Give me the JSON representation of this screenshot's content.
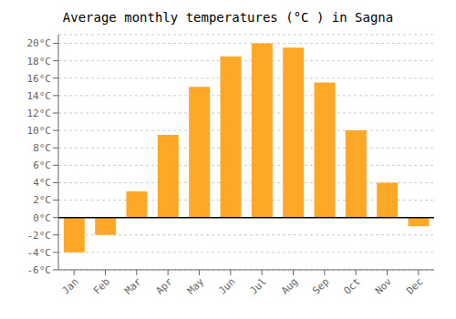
{
  "chart_data": {
    "type": "bar",
    "title": "Average monthly temperatures (°C ) in Sagna",
    "categories": [
      "Jan",
      "Feb",
      "Mar",
      "Apr",
      "May",
      "Jun",
      "Jul",
      "Aug",
      "Sep",
      "Oct",
      "Nov",
      "Dec"
    ],
    "values": [
      -4.0,
      -2.0,
      3.0,
      9.5,
      15.0,
      18.5,
      20.0,
      19.5,
      15.5,
      10.0,
      4.0,
      -1.0
    ],
    "color": "#FFA726",
    "ylim": [
      -6,
      21
    ],
    "yticks": [
      {
        "value": -6,
        "label": "-6°C"
      },
      {
        "value": -4,
        "label": "-4°C"
      },
      {
        "value": -2,
        "label": "-2°C"
      },
      {
        "value": 0,
        "label": "0°C"
      },
      {
        "value": 2,
        "label": "2°C"
      },
      {
        "value": 4,
        "label": "4°C"
      },
      {
        "value": 6,
        "label": "6°C"
      },
      {
        "value": 8,
        "label": "8°C"
      },
      {
        "value": 10,
        "label": "10°C"
      },
      {
        "value": 12,
        "label": "12°C"
      },
      {
        "value": 14,
        "label": "14°C"
      },
      {
        "value": 16,
        "label": "16°C"
      },
      {
        "value": 18,
        "label": "18°C"
      },
      {
        "value": 20,
        "label": "20°C"
      }
    ],
    "grid": true
  }
}
